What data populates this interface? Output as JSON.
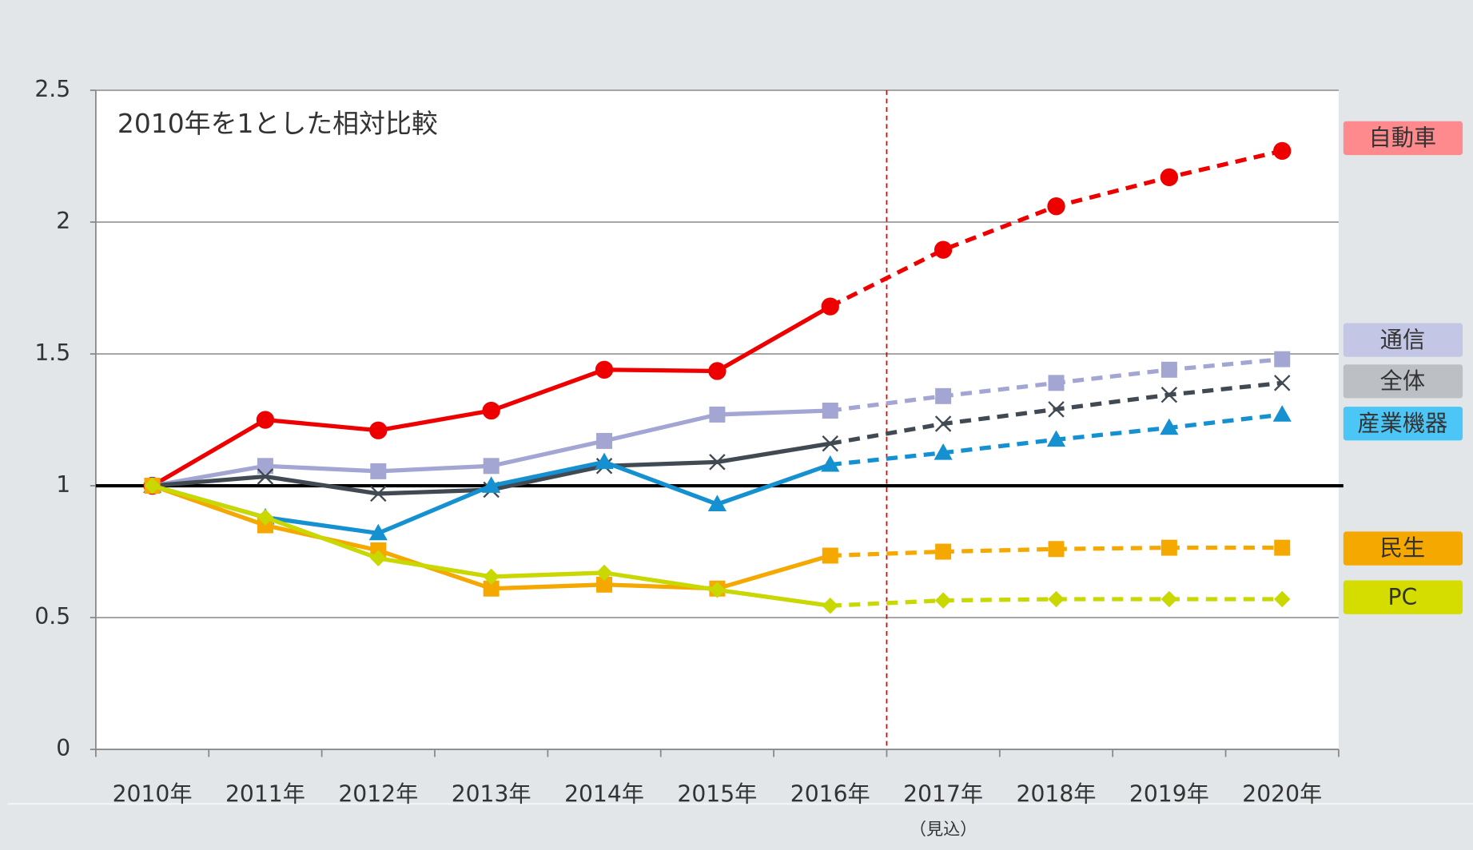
{
  "chart_data": {
    "type": "line",
    "annotation": "2010年を1とした相対比較",
    "forecast_note": "（見込）",
    "categories": [
      "2010年",
      "2011年",
      "2012年",
      "2013年",
      "2014年",
      "2015年",
      "2016年",
      "2017年",
      "2018年",
      "2019年",
      "2020年"
    ],
    "forecast_start_index": 6,
    "reference_line": 1,
    "ylim": [
      0,
      2.5
    ],
    "yticks": [
      0,
      0.5,
      1,
      1.5,
      2,
      2.5
    ],
    "grid": true,
    "legend": "right",
    "series": [
      {
        "name": "自動車",
        "color": "#ee0000",
        "legend_color": "#ff8a8e",
        "marker": "circle",
        "values": [
          1.0,
          1.25,
          1.21,
          1.285,
          1.44,
          1.435,
          1.68,
          1.895,
          2.06,
          2.17,
          2.27
        ]
      },
      {
        "name": "通信",
        "color": "#a3a6d2",
        "legend_color": "#c4c6e6",
        "marker": "square",
        "values": [
          1.0,
          1.075,
          1.055,
          1.075,
          1.17,
          1.27,
          1.285,
          1.34,
          1.39,
          1.44,
          1.48
        ]
      },
      {
        "name": "全体",
        "color": "#414a52",
        "legend_color": "#bcc0c4",
        "marker": "x",
        "values": [
          1.0,
          1.035,
          0.97,
          0.985,
          1.075,
          1.09,
          1.16,
          1.235,
          1.29,
          1.345,
          1.39
        ]
      },
      {
        "name": "産業機器",
        "color": "#1590d0",
        "legend_color": "#4cc6f6",
        "marker": "triangle",
        "values": [
          1.0,
          0.88,
          0.82,
          1.0,
          1.09,
          0.93,
          1.08,
          1.125,
          1.175,
          1.22,
          1.27
        ]
      },
      {
        "name": "民生",
        "color": "#f5a800",
        "legend_color": "#f5a800",
        "marker": "square",
        "values": [
          1.0,
          0.85,
          0.755,
          0.61,
          0.625,
          0.61,
          0.735,
          0.75,
          0.76,
          0.765,
          0.765
        ]
      },
      {
        "name": "PC",
        "color": "#c8d800",
        "legend_color": "#d4dc00",
        "marker": "diamond",
        "values": [
          1.0,
          0.88,
          0.725,
          0.655,
          0.67,
          0.605,
          0.545,
          0.565,
          0.57,
          0.57,
          0.57
        ]
      }
    ]
  }
}
